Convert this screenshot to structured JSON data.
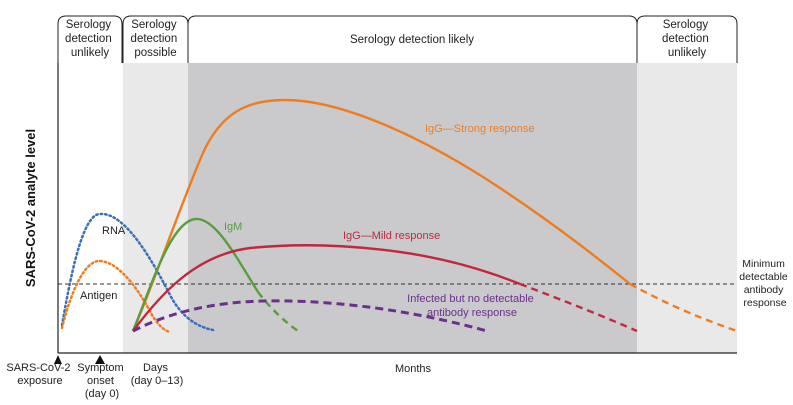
{
  "phases": [
    {
      "lines": [
        "Serology",
        "detection",
        "unlikely"
      ]
    },
    {
      "lines": [
        "Serology",
        "detection",
        "possible"
      ]
    },
    {
      "lines": [
        "Serology detection likely"
      ]
    },
    {
      "lines": [
        "Serology",
        "detection",
        "unlikely"
      ]
    }
  ],
  "y_axis_label": "SARS-CoV-2 analyte level",
  "threshold_label": [
    "Minimum",
    "detectable",
    "antibody",
    "response"
  ],
  "curve_labels": {
    "rna": "RNA",
    "antigen": "Antigen",
    "igm": "IgM",
    "igg_strong": "IgG—Strong response",
    "igg_mild": "IgG—Mild response",
    "no_antibody": [
      "Infected but no detectable",
      "antibody response"
    ]
  },
  "x_labels": {
    "exposure": [
      "SARS-CoV-2",
      "exposure"
    ],
    "onset": [
      "Symptom",
      "onset",
      "(day 0)"
    ],
    "days": [
      "Days",
      "(day 0–13)"
    ],
    "months": "Months"
  },
  "colors": {
    "rna": "#3a6fb5",
    "antigen": "#ee7d22",
    "igm": "#5a9e3c",
    "igg_strong": "#ee7d22",
    "igg_mild": "#c0283f",
    "no_antibody": "#6b2f8c",
    "zone_light": "#e9e9ea",
    "zone_dark": "#cacacc"
  }
}
